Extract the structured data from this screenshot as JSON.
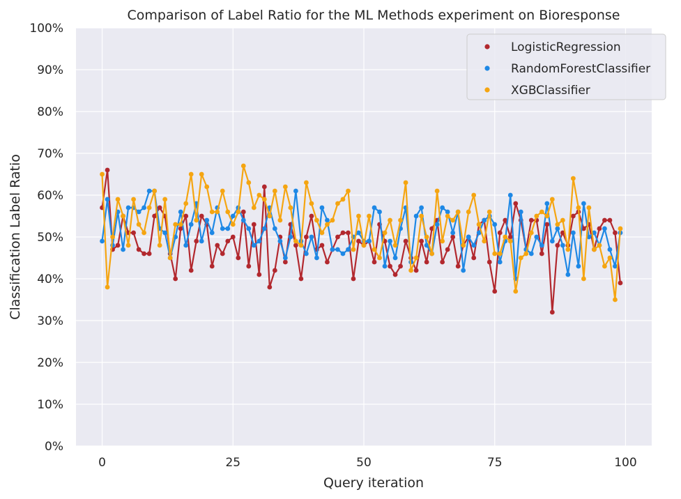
{
  "chart_data": {
    "type": "line",
    "title": "Comparison of Label Ratio for the ML Methods experiment on Bioresponse",
    "xlabel": "Query iteration",
    "ylabel": "Classification Label Ratio",
    "xlim": [
      -5,
      105
    ],
    "ylim": [
      0,
      1
    ],
    "x_ticks": [
      0,
      25,
      50,
      75,
      100
    ],
    "x_tick_labels": [
      "0",
      "25",
      "50",
      "75",
      "100"
    ],
    "y_ticks": [
      0,
      0.1,
      0.2,
      0.3,
      0.4,
      0.5,
      0.6,
      0.7,
      0.8,
      0.9,
      1.0
    ],
    "y_tick_labels": [
      "0%",
      "10%",
      "20%",
      "30%",
      "40%",
      "50%",
      "60%",
      "70%",
      "80%",
      "90%",
      "100%"
    ],
    "grid": true,
    "background": "#eaeaf2",
    "legend_position": "top-right",
    "series": [
      {
        "name": "LogisticRegression",
        "color": "#b2282e",
        "x": [
          0,
          1,
          2,
          3,
          4,
          5,
          6,
          7,
          8,
          9,
          10,
          11,
          12,
          13,
          14,
          15,
          16,
          17,
          18,
          19,
          20,
          21,
          22,
          23,
          24,
          25,
          26,
          27,
          28,
          29,
          30,
          31,
          32,
          33,
          34,
          35,
          36,
          37,
          38,
          39,
          40,
          41,
          42,
          43,
          44,
          45,
          46,
          47,
          48,
          49,
          50,
          51,
          52,
          53,
          54,
          55,
          56,
          57,
          58,
          59,
          60,
          61,
          62,
          63,
          64,
          65,
          66,
          67,
          68,
          69,
          70,
          71,
          72,
          73,
          74,
          75,
          76,
          77,
          78,
          79,
          80,
          81,
          82,
          83,
          84,
          85,
          86,
          87,
          88,
          89,
          90,
          91,
          92,
          93,
          94,
          95,
          96,
          97,
          98,
          99
        ],
        "y": [
          0.57,
          0.66,
          0.47,
          0.48,
          0.55,
          0.51,
          0.51,
          0.47,
          0.46,
          0.46,
          0.55,
          0.57,
          0.55,
          0.46,
          0.4,
          0.52,
          0.55,
          0.42,
          0.49,
          0.55,
          0.53,
          0.43,
          0.48,
          0.46,
          0.49,
          0.5,
          0.45,
          0.56,
          0.43,
          0.53,
          0.41,
          0.62,
          0.38,
          0.42,
          0.5,
          0.44,
          0.53,
          0.48,
          0.4,
          0.5,
          0.55,
          0.47,
          0.48,
          0.44,
          0.47,
          0.5,
          0.51,
          0.51,
          0.4,
          0.49,
          0.48,
          0.49,
          0.44,
          0.53,
          0.49,
          0.43,
          0.41,
          0.43,
          0.49,
          0.45,
          0.42,
          0.49,
          0.44,
          0.52,
          0.54,
          0.44,
          0.47,
          0.5,
          0.43,
          0.48,
          0.5,
          0.45,
          0.53,
          0.54,
          0.44,
          0.37,
          0.51,
          0.54,
          0.5,
          0.58,
          0.54,
          0.47,
          0.54,
          0.54,
          0.46,
          0.53,
          0.32,
          0.48,
          0.51,
          0.48,
          0.55,
          0.56,
          0.52,
          0.53,
          0.47,
          0.52,
          0.54,
          0.54,
          0.51,
          0.39
        ]
      },
      {
        "name": "RandomForestClassifier",
        "color": "#1e88e5",
        "x": [
          0,
          1,
          2,
          3,
          4,
          5,
          6,
          7,
          8,
          9,
          10,
          11,
          12,
          13,
          14,
          15,
          16,
          17,
          18,
          19,
          20,
          21,
          22,
          23,
          24,
          25,
          26,
          27,
          28,
          29,
          30,
          31,
          32,
          33,
          34,
          35,
          36,
          37,
          38,
          39,
          40,
          41,
          42,
          43,
          44,
          45,
          46,
          47,
          48,
          49,
          50,
          51,
          52,
          53,
          54,
          55,
          56,
          57,
          58,
          59,
          60,
          61,
          62,
          63,
          64,
          65,
          66,
          67,
          68,
          69,
          70,
          71,
          72,
          73,
          74,
          75,
          76,
          77,
          78,
          79,
          80,
          81,
          82,
          83,
          84,
          85,
          86,
          87,
          88,
          89,
          90,
          91,
          92,
          93,
          94,
          95,
          96,
          97,
          98,
          99
        ],
        "y": [
          0.49,
          0.59,
          0.48,
          0.56,
          0.47,
          0.57,
          0.57,
          0.56,
          0.57,
          0.61,
          0.61,
          0.52,
          0.51,
          0.45,
          0.5,
          0.56,
          0.48,
          0.53,
          0.58,
          0.49,
          0.54,
          0.51,
          0.57,
          0.52,
          0.52,
          0.55,
          0.57,
          0.54,
          0.52,
          0.48,
          0.49,
          0.52,
          0.57,
          0.52,
          0.49,
          0.45,
          0.5,
          0.61,
          0.49,
          0.46,
          0.5,
          0.45,
          0.57,
          0.54,
          0.47,
          0.47,
          0.46,
          0.47,
          0.5,
          0.51,
          0.49,
          0.49,
          0.57,
          0.56,
          0.43,
          0.49,
          0.45,
          0.52,
          0.57,
          0.44,
          0.55,
          0.57,
          0.48,
          0.46,
          0.53,
          0.57,
          0.56,
          0.51,
          0.56,
          0.42,
          0.5,
          0.48,
          0.51,
          0.54,
          0.55,
          0.53,
          0.44,
          0.49,
          0.6,
          0.4,
          0.56,
          0.47,
          0.46,
          0.5,
          0.48,
          0.58,
          0.49,
          0.52,
          0.48,
          0.41,
          0.51,
          0.43,
          0.58,
          0.5,
          0.51,
          0.48,
          0.52,
          0.47,
          0.43,
          0.51
        ]
      },
      {
        "name": "XGBClassifier",
        "color": "#f5a511",
        "x": [
          0,
          1,
          2,
          3,
          4,
          5,
          6,
          7,
          8,
          9,
          10,
          11,
          12,
          13,
          14,
          15,
          16,
          17,
          18,
          19,
          20,
          21,
          22,
          23,
          24,
          25,
          26,
          27,
          28,
          29,
          30,
          31,
          32,
          33,
          34,
          35,
          36,
          37,
          38,
          39,
          40,
          41,
          42,
          43,
          44,
          45,
          46,
          47,
          48,
          49,
          50,
          51,
          52,
          53,
          54,
          55,
          56,
          57,
          58,
          59,
          60,
          61,
          62,
          63,
          64,
          65,
          66,
          67,
          68,
          69,
          70,
          71,
          72,
          73,
          74,
          75,
          76,
          77,
          78,
          79,
          80,
          81,
          82,
          83,
          84,
          85,
          86,
          87,
          88,
          89,
          90,
          91,
          92,
          93,
          94,
          95,
          96,
          97,
          98,
          99
        ],
        "y": [
          0.65,
          0.38,
          0.5,
          0.59,
          0.55,
          0.48,
          0.59,
          0.53,
          0.51,
          0.57,
          0.61,
          0.48,
          0.59,
          0.45,
          0.53,
          0.53,
          0.58,
          0.65,
          0.54,
          0.65,
          0.62,
          0.56,
          0.56,
          0.61,
          0.56,
          0.53,
          0.56,
          0.67,
          0.63,
          0.57,
          0.6,
          0.59,
          0.55,
          0.61,
          0.54,
          0.62,
          0.57,
          0.49,
          0.48,
          0.63,
          0.58,
          0.54,
          0.51,
          0.53,
          0.54,
          0.58,
          0.59,
          0.61,
          0.47,
          0.55,
          0.48,
          0.55,
          0.47,
          0.45,
          0.51,
          0.54,
          0.48,
          0.54,
          0.63,
          0.42,
          0.45,
          0.55,
          0.5,
          0.46,
          0.61,
          0.49,
          0.55,
          0.54,
          0.56,
          0.48,
          0.56,
          0.6,
          0.53,
          0.49,
          0.56,
          0.46,
          0.46,
          0.5,
          0.49,
          0.37,
          0.45,
          0.46,
          0.51,
          0.55,
          0.56,
          0.55,
          0.59,
          0.53,
          0.54,
          0.47,
          0.64,
          0.57,
          0.4,
          0.57,
          0.47,
          0.48,
          0.43,
          0.45,
          0.35,
          0.52
        ]
      }
    ]
  }
}
